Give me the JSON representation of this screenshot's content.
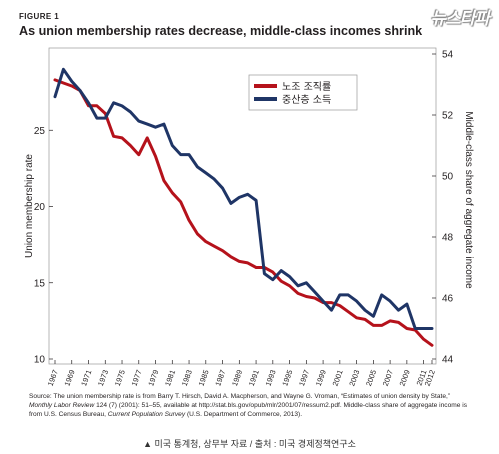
{
  "header": {
    "figure_label": "FIGURE 1",
    "title": "As union membership rates decrease, middle-class incomes shrink",
    "watermark": "뉴스타파"
  },
  "source": {
    "prefix": "Source: The union membership rate is from Barry T. Hirsch, David A. Macpherson, and Wayne G. Vroman, “Estimates of union density by State,” ",
    "journal": "Monthly Labor Review",
    "middle": " 124 (7) (2001): 51–55, available at http://stat.bls.gov/opub/mlr/2001/07/ressum2.pdf. Middle-class share of aggregate income is from U.S. Census Bureau, ",
    "survey": "Current Population Survey",
    "suffix": " (U.S. Department of Commerce, 2013)."
  },
  "footer": {
    "caption": "▲ 미국 통계청, 상무부 자료 / 출처 : 미국 경제정책연구소"
  },
  "colors": {
    "union": "#b5121b",
    "middle_class": "#1f3566",
    "axis": "#231f20",
    "border": "#999999"
  },
  "chart_data": {
    "type": "line",
    "x": [
      1967,
      1968,
      1969,
      1970,
      1971,
      1972,
      1973,
      1974,
      1975,
      1976,
      1977,
      1978,
      1979,
      1980,
      1981,
      1982,
      1983,
      1984,
      1985,
      1986,
      1987,
      1988,
      1989,
      1990,
      1991,
      1992,
      1993,
      1994,
      1995,
      1996,
      1997,
      1998,
      1999,
      2000,
      2001,
      2002,
      2003,
      2004,
      2005,
      2006,
      2007,
      2008,
      2009,
      2010,
      2011,
      2012
    ],
    "x_tick_labels": [
      "1967",
      "1969",
      "1971",
      "1973",
      "1975",
      "1977",
      "1979",
      "1981",
      "1983",
      "1985",
      "1987",
      "1989",
      "1991",
      "1993",
      "1995",
      "1997",
      "1999",
      "2001",
      "2003",
      "2005",
      "2007",
      "2009",
      "2011",
      "2012"
    ],
    "y_left": {
      "label": "Union membership rate",
      "ylim": [
        10,
        30
      ],
      "ticks": [
        10,
        15,
        20,
        25
      ]
    },
    "y_right": {
      "label": "Middle-class share of aggregate income",
      "ylim": [
        44,
        54
      ],
      "ticks": [
        44,
        46,
        48,
        50,
        52,
        54
      ]
    },
    "legend_position": "top-right",
    "series": [
      {
        "name": "노조 조직률",
        "axis": "left",
        "values": [
          28.3,
          28.1,
          27.9,
          27.6,
          26.6,
          26.6,
          26.1,
          24.6,
          24.5,
          24.0,
          23.4,
          24.5,
          23.3,
          21.7,
          20.9,
          20.3,
          19.1,
          18.2,
          17.7,
          17.4,
          17.1,
          16.7,
          16.4,
          16.3,
          16.0,
          16.0,
          15.7,
          15.1,
          14.8,
          14.3,
          14.1,
          14.0,
          13.7,
          13.7,
          13.5,
          13.1,
          12.7,
          12.6,
          12.2,
          12.2,
          12.5,
          12.4,
          12.0,
          11.9,
          11.3,
          10.9
        ]
      },
      {
        "name": "중산층 소득",
        "axis": "right",
        "values": [
          52.6,
          53.5,
          53.1,
          52.8,
          52.4,
          51.9,
          51.9,
          52.4,
          52.3,
          52.1,
          51.8,
          51.7,
          51.6,
          51.7,
          51.0,
          50.7,
          50.7,
          50.3,
          50.1,
          49.9,
          49.6,
          49.1,
          49.3,
          49.4,
          49.2,
          46.8,
          46.6,
          46.9,
          46.7,
          46.4,
          46.5,
          46.2,
          45.9,
          45.6,
          46.1,
          46.1,
          45.9,
          45.6,
          45.4,
          46.1,
          45.9,
          45.6,
          45.8,
          45.0,
          45.0,
          45.0
        ]
      }
    ]
  }
}
